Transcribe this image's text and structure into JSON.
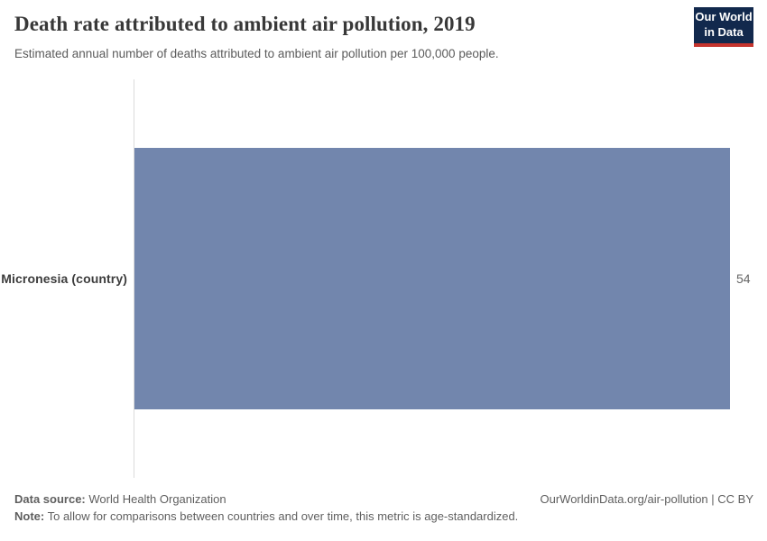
{
  "header": {
    "title": "Death rate attributed to ambient air pollution, 2019",
    "subtitle": "Estimated annual number of deaths attributed to ambient air pollution per 100,000 people.",
    "logo": {
      "line1": "Our World",
      "line2": "in Data",
      "background_color": "#12294d",
      "accent_color": "#c5342d"
    }
  },
  "chart_data": {
    "type": "bar",
    "orientation": "horizontal",
    "title": "Death rate attributed to ambient air pollution, 2019",
    "subtitle": "Estimated annual number of deaths attributed to ambient air pollution per 100,000 people.",
    "categories": [
      "Micronesia (country)"
    ],
    "values": [
      54
    ],
    "xlabel": "",
    "ylabel": "",
    "xlim": [
      0,
      54
    ],
    "grid": false,
    "legend": false,
    "bar_color": "#7286ad",
    "axis_line_color": "#dcdcdc",
    "value_label_color": "#666666"
  },
  "footer": {
    "data_source_label": "Data source:",
    "data_source": "World Health Organization",
    "note_label": "Note:",
    "note": "To allow for comparisons between countries and over time, this metric is age-standardized.",
    "attribution": "OurWorldinData.org/air-pollution | CC BY"
  }
}
